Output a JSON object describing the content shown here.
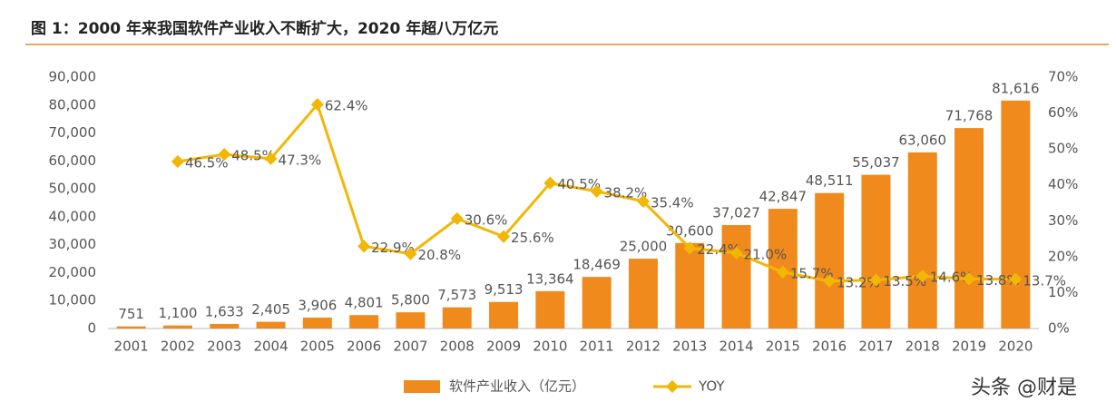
{
  "chart_data": {
    "type": "bar-line",
    "title": "图 1：2000 年来我国软件产业收入不断扩大，2020 年超八万亿元",
    "watermark": "头条 @财是",
    "categories": [
      "2001",
      "2002",
      "2003",
      "2004",
      "2005",
      "2006",
      "2007",
      "2008",
      "2009",
      "2010",
      "2011",
      "2012",
      "2013",
      "2014",
      "2015",
      "2016",
      "2017",
      "2018",
      "2019",
      "2020"
    ],
    "series": [
      {
        "name": "软件产业收入（亿元）",
        "type": "bar",
        "color": "#f08a1c",
        "values": [
          751,
          1100,
          1633,
          2405,
          3906,
          4801,
          5800,
          7573,
          9513,
          13364,
          18469,
          25000,
          30600,
          37027,
          42847,
          48511,
          55037,
          63060,
          71768,
          81616
        ],
        "value_labels": [
          "751",
          "1,100",
          "1,633",
          "2,405",
          "3,906",
          "4,801",
          "5,800",
          "7,573",
          "9,513",
          "13,364",
          "18,469",
          "25,000",
          "30,600",
          "37,027",
          "42,847",
          "48,511",
          "55,037",
          "63,060",
          "71,768",
          "81,616"
        ]
      },
      {
        "name": "YOY",
        "type": "line",
        "axis": "y2",
        "color": "#f2b705",
        "values": [
          null,
          46.5,
          48.5,
          47.3,
          62.4,
          22.9,
          20.8,
          30.6,
          25.6,
          40.5,
          38.2,
          35.4,
          22.4,
          21.0,
          15.7,
          13.2,
          13.5,
          14.6,
          13.8,
          13.7
        ],
        "value_labels": [
          null,
          "46.5%",
          "48.5%",
          "47.3%",
          "62.4%",
          "22.9%",
          "20.8%",
          "30.6%",
          "25.6%",
          "40.5%",
          "38.2%",
          "35.4%",
          "22.4%",
          "21.0%",
          "15.7%",
          "13.2%",
          "13.5%",
          "14.6%",
          "13.8%",
          "13.7%"
        ]
      }
    ],
    "ylim": [
      0,
      90000
    ],
    "yticks": [
      {
        "value": 0,
        "label": "0"
      },
      {
        "value": 10000,
        "label": "10,000"
      },
      {
        "value": 20000,
        "label": "20,000"
      },
      {
        "value": 30000,
        "label": "30,000"
      },
      {
        "value": 40000,
        "label": "40,000"
      },
      {
        "value": 50000,
        "label": "50,000"
      },
      {
        "value": 60000,
        "label": "60,000"
      },
      {
        "value": 70000,
        "label": "70,000"
      },
      {
        "value": 80000,
        "label": "80,000"
      },
      {
        "value": 90000,
        "label": "90,000"
      }
    ],
    "y2lim": [
      0,
      70
    ],
    "y2ticks": [
      {
        "value": 0,
        "label": "0%"
      },
      {
        "value": 10,
        "label": "10%"
      },
      {
        "value": 20,
        "label": "20%"
      },
      {
        "value": 30,
        "label": "30%"
      },
      {
        "value": 40,
        "label": "40%"
      },
      {
        "value": 50,
        "label": "50%"
      },
      {
        "value": 60,
        "label": "60%"
      },
      {
        "value": 70,
        "label": "70%"
      }
    ],
    "legend": "bottom"
  }
}
